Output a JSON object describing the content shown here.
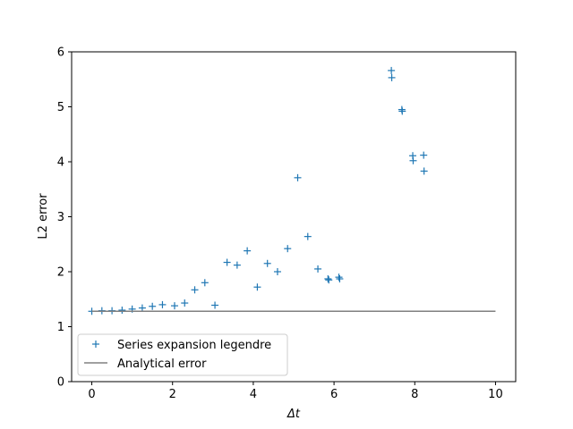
{
  "chart_data": {
    "type": "scatter",
    "title": "",
    "xlabel": "Δt",
    "ylabel": "L2 error",
    "xlim": [
      -0.5,
      10.5
    ],
    "ylim": [
      0,
      6
    ],
    "xticks": [
      0,
      2,
      4,
      6,
      8,
      10
    ],
    "yticks": [
      0,
      1,
      2,
      3,
      4,
      5,
      6
    ],
    "grid": false,
    "legend_position": "lower-left",
    "series": [
      {
        "name": "Series expansion legendre",
        "marker": "plus",
        "color": "#1f77b4",
        "points": [
          [
            0.0,
            1.28
          ],
          [
            0.25,
            1.29
          ],
          [
            0.5,
            1.29
          ],
          [
            0.75,
            1.3
          ],
          [
            1.0,
            1.32
          ],
          [
            1.25,
            1.34
          ],
          [
            1.5,
            1.37
          ],
          [
            1.75,
            1.4
          ],
          [
            2.05,
            1.38
          ],
          [
            2.3,
            1.43
          ],
          [
            2.55,
            1.67
          ],
          [
            2.8,
            1.8
          ],
          [
            3.05,
            1.39
          ],
          [
            3.35,
            2.17
          ],
          [
            3.6,
            2.12
          ],
          [
            3.85,
            2.38
          ],
          [
            4.1,
            1.72
          ],
          [
            4.35,
            2.15
          ],
          [
            4.6,
            2.0
          ],
          [
            4.85,
            2.42
          ],
          [
            5.1,
            3.71
          ],
          [
            5.35,
            2.64
          ],
          [
            5.6,
            2.05
          ],
          [
            5.85,
            1.87
          ],
          [
            5.87,
            1.85
          ],
          [
            6.12,
            1.9
          ],
          [
            6.14,
            1.87
          ],
          [
            7.42,
            5.66
          ],
          [
            7.43,
            5.53
          ],
          [
            7.68,
            4.95
          ],
          [
            7.69,
            4.92
          ],
          [
            7.95,
            4.11
          ],
          [
            7.96,
            4.02
          ],
          [
            8.22,
            4.12
          ],
          [
            8.23,
            3.83
          ]
        ]
      },
      {
        "name": "Analytical error",
        "marker": "line",
        "color": "#808080",
        "x": [
          0,
          10
        ],
        "y": [
          1.28,
          1.28
        ]
      }
    ]
  }
}
